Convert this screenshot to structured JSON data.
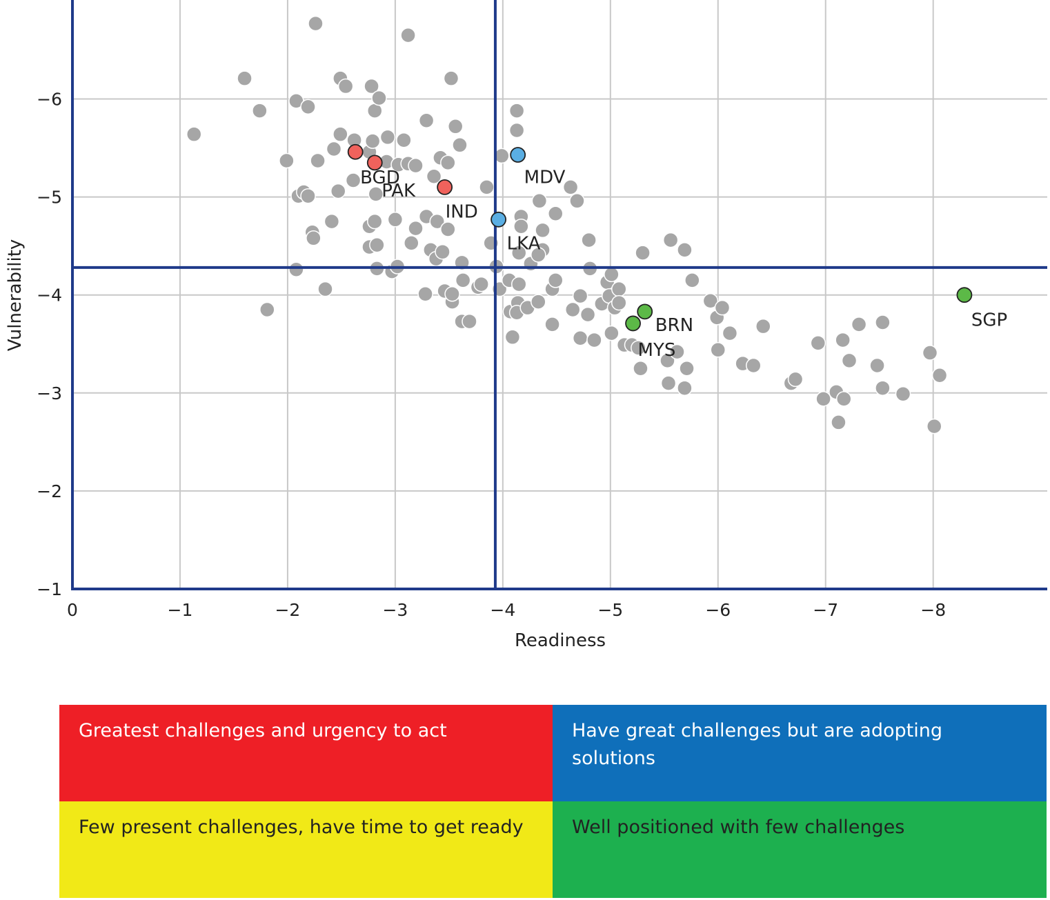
{
  "chart_data": {
    "type": "scatter",
    "xlabel": "Readiness",
    "ylabel": "Vulnerability",
    "xlim": [
      0,
      -9.06
    ],
    "ylim": [
      -1,
      -7.01
    ],
    "x_ticks": [
      "0",
      "−1",
      "−2",
      "−3",
      "−4",
      "−5",
      "−6",
      "−7",
      "−8"
    ],
    "x_tick_values": [
      0,
      -1,
      -2,
      -3,
      -4,
      -5,
      -6,
      -7,
      -8
    ],
    "y_ticks": [
      "−1",
      "−2",
      "−3",
      "−4",
      "−5",
      "−6"
    ],
    "y_tick_values": [
      -1,
      -2,
      -3,
      -4,
      -5,
      -6
    ],
    "grid": true,
    "thresholds": {
      "x": -3.93,
      "y": -4.28
    },
    "colors": {
      "other": "#a6a6a6",
      "red": "#f0625c",
      "blue": "#5aaee3",
      "green": "#5cb947",
      "axis": "#1f3a8a",
      "grid": "#c8c8c8"
    },
    "highlighted": [
      {
        "label": "BGD",
        "x": -2.63,
        "y": -5.46,
        "color": "red"
      },
      {
        "label": "PAK",
        "x": -2.81,
        "y": -5.35,
        "color": "red"
      },
      {
        "label": "IND",
        "x": -3.46,
        "y": -5.1,
        "color": "red"
      },
      {
        "label": "MDV",
        "x": -4.14,
        "y": -5.43,
        "color": "blue"
      },
      {
        "label": "LKA",
        "x": -3.96,
        "y": -4.77,
        "color": "blue"
      },
      {
        "label": "BRN",
        "x": -5.32,
        "y": -3.83,
        "color": "green"
      },
      {
        "label": "MYS",
        "x": -5.21,
        "y": -3.71,
        "color": "green"
      },
      {
        "label": "SGP",
        "x": -8.29,
        "y": -4.0,
        "color": "green"
      }
    ],
    "points": [
      [
        -1.13,
        -5.64
      ],
      [
        -1.6,
        -6.21
      ],
      [
        -1.74,
        -5.88
      ],
      [
        -1.81,
        -3.85
      ],
      [
        -1.99,
        -5.37
      ],
      [
        -2.08,
        -5.98
      ],
      [
        -2.08,
        -4.26
      ],
      [
        -2.1,
        -5.01
      ],
      [
        -2.15,
        -5.05
      ],
      [
        -2.19,
        -5.92
      ],
      [
        -2.19,
        -5.01
      ],
      [
        -2.23,
        -4.64
      ],
      [
        -2.24,
        -4.58
      ],
      [
        -2.26,
        -6.77
      ],
      [
        -2.28,
        -5.37
      ],
      [
        -2.35,
        -4.06
      ],
      [
        -2.41,
        -4.75
      ],
      [
        -2.43,
        -5.49
      ],
      [
        -2.47,
        -5.06
      ],
      [
        -2.49,
        -5.64
      ],
      [
        -2.49,
        -6.21
      ],
      [
        -2.54,
        -6.13
      ],
      [
        -2.61,
        -5.17
      ],
      [
        -2.62,
        -5.58
      ],
      [
        -2.76,
        -5.46
      ],
      [
        -2.76,
        -4.7
      ],
      [
        -2.76,
        -4.49
      ],
      [
        -2.78,
        -6.13
      ],
      [
        -2.79,
        -5.57
      ],
      [
        -2.81,
        -5.88
      ],
      [
        -2.81,
        -4.75
      ],
      [
        -2.82,
        -5.03
      ],
      [
        -2.83,
        -4.27
      ],
      [
        -2.83,
        -4.51
      ],
      [
        -2.85,
        -6.01
      ],
      [
        -2.92,
        -5.36
      ],
      [
        -2.93,
        -5.61
      ],
      [
        -2.97,
        -4.24
      ],
      [
        -3.0,
        -4.77
      ],
      [
        -3.02,
        -4.29
      ],
      [
        -3.03,
        -5.33
      ],
      [
        -3.08,
        -5.58
      ],
      [
        -3.12,
        -6.65
      ],
      [
        -3.12,
        -5.34
      ],
      [
        -3.15,
        -4.53
      ],
      [
        -3.19,
        -4.68
      ],
      [
        -3.19,
        -5.32
      ],
      [
        -3.28,
        -4.01
      ],
      [
        -3.29,
        -5.78
      ],
      [
        -3.29,
        -4.8
      ],
      [
        -3.33,
        -4.46
      ],
      [
        -3.36,
        -5.21
      ],
      [
        -3.38,
        -4.37
      ],
      [
        -3.39,
        -4.75
      ],
      [
        -3.42,
        -5.4
      ],
      [
        -3.44,
        -4.44
      ],
      [
        -3.46,
        -4.04
      ],
      [
        -3.49,
        -4.67
      ],
      [
        -3.49,
        -5.35
      ],
      [
        -3.52,
        -6.21
      ],
      [
        -3.53,
        -3.93
      ],
      [
        -3.53,
        -4.01
      ],
      [
        -3.56,
        -5.72
      ],
      [
        -3.6,
        -5.53
      ],
      [
        -3.62,
        -4.33
      ],
      [
        -3.63,
        -4.15
      ],
      [
        -3.62,
        -3.73
      ],
      [
        -3.69,
        -3.73
      ],
      [
        -3.77,
        -4.08
      ],
      [
        -3.8,
        -4.11
      ],
      [
        -3.85,
        -5.1
      ],
      [
        -3.89,
        -4.53
      ],
      [
        -3.94,
        -4.29
      ],
      [
        -3.97,
        -4.06
      ],
      [
        -3.99,
        -5.42
      ],
      [
        -4.06,
        -4.15
      ],
      [
        -4.07,
        -3.83
      ],
      [
        -4.09,
        -3.57
      ],
      [
        -4.13,
        -5.88
      ],
      [
        -4.13,
        -5.68
      ],
      [
        -4.14,
        -3.92
      ],
      [
        -4.13,
        -3.82
      ],
      [
        -4.15,
        -4.11
      ],
      [
        -4.17,
        -4.8
      ],
      [
        -4.17,
        -4.7
      ],
      [
        -4.15,
        -4.43
      ],
      [
        -4.23,
        -3.87
      ],
      [
        -4.26,
        -4.32
      ],
      [
        -4.33,
        -3.93
      ],
      [
        -4.34,
        -4.96
      ],
      [
        -4.37,
        -4.66
      ],
      [
        -4.37,
        -4.46
      ],
      [
        -4.33,
        -4.41
      ],
      [
        -4.46,
        -3.7
      ],
      [
        -4.46,
        -4.06
      ],
      [
        -4.49,
        -4.15
      ],
      [
        -4.49,
        -4.83
      ],
      [
        -4.63,
        -5.1
      ],
      [
        -4.65,
        -3.85
      ],
      [
        -4.69,
        -4.96
      ],
      [
        -4.72,
        -3.99
      ],
      [
        -4.72,
        -3.56
      ],
      [
        -4.79,
        -3.8
      ],
      [
        -4.8,
        -4.56
      ],
      [
        -4.81,
        -4.27
      ],
      [
        -4.85,
        -3.54
      ],
      [
        -4.92,
        -3.91
      ],
      [
        -4.97,
        -4.13
      ],
      [
        -4.99,
        -3.99
      ],
      [
        -5.01,
        -4.21
      ],
      [
        -5.01,
        -3.61
      ],
      [
        -5.04,
        -3.87
      ],
      [
        -5.08,
        -4.06
      ],
      [
        -5.08,
        -3.92
      ],
      [
        -5.13,
        -3.49
      ],
      [
        -5.2,
        -3.49
      ],
      [
        -5.26,
        -3.46
      ],
      [
        -5.28,
        -3.25
      ],
      [
        -5.3,
        -4.43
      ],
      [
        -5.53,
        -3.33
      ],
      [
        -5.56,
        -4.56
      ],
      [
        -5.54,
        -3.1
      ],
      [
        -5.62,
        -3.42
      ],
      [
        -5.69,
        -4.46
      ],
      [
        -5.71,
        -3.25
      ],
      [
        -5.69,
        -3.05
      ],
      [
        -5.76,
        -4.15
      ],
      [
        -5.93,
        -3.94
      ],
      [
        -5.99,
        -3.77
      ],
      [
        -6.04,
        -3.87
      ],
      [
        -6.0,
        -3.44
      ],
      [
        -6.11,
        -3.61
      ],
      [
        -6.23,
        -3.3
      ],
      [
        -6.33,
        -3.28
      ],
      [
        -6.42,
        -3.68
      ],
      [
        -6.68,
        -3.1
      ],
      [
        -6.72,
        -3.14
      ],
      [
        -6.93,
        -3.51
      ],
      [
        -6.98,
        -2.94
      ],
      [
        -7.1,
        -3.01
      ],
      [
        -7.12,
        -2.7
      ],
      [
        -7.16,
        -3.54
      ],
      [
        -7.17,
        -2.94
      ],
      [
        -7.22,
        -3.33
      ],
      [
        -7.31,
        -3.7
      ],
      [
        -7.48,
        -3.28
      ],
      [
        -7.53,
        -3.72
      ],
      [
        -7.53,
        -3.05
      ],
      [
        -7.72,
        -2.99
      ],
      [
        -7.97,
        -3.41
      ],
      [
        -8.01,
        -2.66
      ],
      [
        -8.06,
        -3.18
      ]
    ]
  },
  "legend": [
    {
      "text": "Greatest challenges and urgency to act",
      "bg": "#ee1f26",
      "fg": "#ffffff"
    },
    {
      "text": "Have great challenges but are adopting solutions",
      "bg": "#0f6fba",
      "fg": "#ffffff"
    },
    {
      "text": "Few present challenges, have time to get ready",
      "bg": "#f1e917",
      "fg": "#222222"
    },
    {
      "text": "Well positioned with few challenges",
      "bg": "#1db04f",
      "fg": "#222222"
    }
  ]
}
